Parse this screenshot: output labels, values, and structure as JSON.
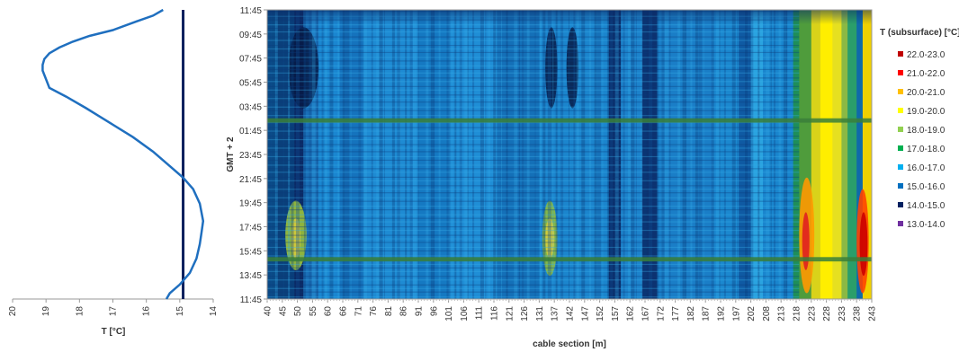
{
  "chart_data": [
    {
      "type": "line",
      "xlabel": "T [°C]",
      "xlim": [
        20,
        14
      ],
      "xticks": [
        "20",
        "19",
        "18",
        "17",
        "16",
        "15",
        "14"
      ],
      "reference_line_x": 14.9,
      "series": [
        {
          "x": [
            15.4,
            15.3,
            15.0,
            14.7,
            14.5,
            14.4,
            14.35,
            14.3,
            14.4,
            14.6,
            14.9,
            15.3,
            15.8,
            16.4,
            17.1,
            17.8,
            18.4,
            18.9,
            19.0,
            19.1,
            19.1,
            19.05,
            18.9,
            18.6,
            18.2,
            17.7,
            17.0,
            16.3,
            15.8,
            15.5
          ],
          "y": [
            0,
            0.02,
            0.05,
            0.09,
            0.14,
            0.19,
            0.23,
            0.27,
            0.33,
            0.38,
            0.42,
            0.46,
            0.51,
            0.56,
            0.61,
            0.66,
            0.7,
            0.73,
            0.76,
            0.79,
            0.81,
            0.83,
            0.85,
            0.87,
            0.89,
            0.91,
            0.93,
            0.96,
            0.98,
            1.0
          ]
        }
      ],
      "curve_color": "#1f6fbf",
      "reference_color": "#0a1e5c"
    },
    {
      "type": "heatmap",
      "xlabel": "cable section [m]",
      "ylabel": "GMT + 2",
      "x_ticks": [
        "40",
        "45",
        "50",
        "55",
        "60",
        "66",
        "71",
        "76",
        "81",
        "86",
        "91",
        "96",
        "101",
        "106",
        "111",
        "116",
        "121",
        "126",
        "131",
        "137",
        "142",
        "147",
        "152",
        "157",
        "162",
        "167",
        "172",
        "177",
        "182",
        "187",
        "192",
        "197",
        "202",
        "208",
        "213",
        "218",
        "223",
        "228",
        "233",
        "238",
        "243"
      ],
      "y_ticks": [
        "11:45",
        "13:45",
        "15:45",
        "17:45",
        "19:45",
        "21:45",
        "23:45",
        "01:45",
        "03:45",
        "05:45",
        "07:45",
        "09:45",
        "11:45"
      ],
      "legend_title": "T (subsurface) [°C]",
      "legend": [
        {
          "label": "22.0-23.0",
          "color": "#c00000"
        },
        {
          "label": "21.0-22.0",
          "color": "#ff0000"
        },
        {
          "label": "20.0-21.0",
          "color": "#ffc000"
        },
        {
          "label": "19.0-20.0",
          "color": "#ffff00"
        },
        {
          "label": "18.0-19.0",
          "color": "#92d050"
        },
        {
          "label": "17.0-18.0",
          "color": "#00b050"
        },
        {
          "label": "16.0-17.0",
          "color": "#00b0f0"
        },
        {
          "label": "15.0-16.0",
          "color": "#0070c0"
        },
        {
          "label": "14.0-15.0",
          "color": "#002060"
        },
        {
          "label": "13.0-14.0",
          "color": "#7030a0"
        }
      ]
    }
  ]
}
